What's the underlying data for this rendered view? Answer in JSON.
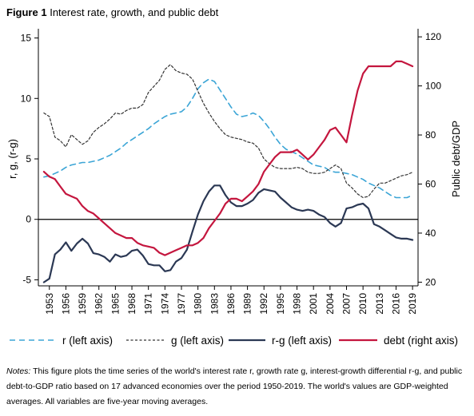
{
  "figure": {
    "label": "Figure 1",
    "title": "Interest rate, growth, and public debt"
  },
  "notes": {
    "label": "Notes:",
    "text": "This figure plots the time series of the world's interest rate r, growth rate g, interest-growth differential r-g, and public debt-to-GDP ratio based on 17 advanced economies over the period 1950-2019. The world's values are GDP-weighted averages. All variables are five-year moving averages."
  },
  "chart_data": {
    "type": "line",
    "ylabel_left": "r, g, (r-g)",
    "ylabel_right": "Public debt/GDP",
    "ylim_left": [
      -5.5,
      15.5
    ],
    "ylim_right": [
      18.5,
      122
    ],
    "yticks_left": [
      -5,
      0,
      5,
      10,
      15
    ],
    "yticks_right": [
      20,
      40,
      60,
      80,
      100,
      120
    ],
    "xlim": [
      1951,
      2020
    ],
    "xticks": [
      1953,
      1956,
      1959,
      1962,
      1965,
      1968,
      1971,
      1974,
      1977,
      1980,
      1983,
      1986,
      1989,
      1992,
      1995,
      1998,
      2001,
      2004,
      2007,
      2010,
      2013,
      2016,
      2019
    ],
    "zero_line": true,
    "grid": false,
    "legend_position": "bottom",
    "colors": {
      "r": "#3BA5D6",
      "g": "#333333",
      "rg": "#2B3854",
      "debt": "#C4163E"
    },
    "series": [
      {
        "key": "r",
        "name": "r (left axis)",
        "axis": "left",
        "style": "dashed",
        "x": [
          1952,
          1953,
          1954,
          1955,
          1956,
          1957,
          1958,
          1959,
          1960,
          1961,
          1962,
          1963,
          1964,
          1965,
          1966,
          1967,
          1968,
          1969,
          1970,
          1971,
          1972,
          1973,
          1974,
          1975,
          1976,
          1977,
          1978,
          1979,
          1980,
          1981,
          1982,
          1983,
          1984,
          1985,
          1986,
          1987,
          1988,
          1989,
          1990,
          1991,
          1992,
          1993,
          1994,
          1995,
          1996,
          1997,
          1998,
          1999,
          2000,
          2001,
          2002,
          2003,
          2004,
          2005,
          2006,
          2007,
          2008,
          2009,
          2010,
          2011,
          2012,
          2013,
          2014,
          2015,
          2016,
          2017,
          2018,
          2019
        ],
        "y": [
          3.5,
          3.6,
          3.8,
          4.0,
          4.3,
          4.5,
          4.6,
          4.7,
          4.7,
          4.8,
          4.9,
          5.1,
          5.3,
          5.6,
          5.9,
          6.3,
          6.6,
          6.9,
          7.2,
          7.5,
          7.9,
          8.2,
          8.5,
          8.7,
          8.8,
          8.9,
          9.3,
          10.0,
          10.8,
          11.3,
          11.6,
          11.4,
          10.7,
          10.0,
          9.3,
          8.7,
          8.5,
          8.6,
          8.8,
          8.6,
          8.1,
          7.5,
          6.8,
          6.2,
          5.8,
          5.6,
          5.4,
          5.1,
          4.8,
          4.5,
          4.4,
          4.3,
          4.0,
          3.9,
          3.9,
          3.8,
          3.7,
          3.5,
          3.3,
          3.0,
          2.8,
          2.6,
          2.3,
          2.0,
          1.8,
          1.8,
          1.8,
          2.0
        ]
      },
      {
        "key": "g",
        "name": "g (left axis)",
        "axis": "left",
        "style": "dotted",
        "x": [
          1952,
          1953,
          1954,
          1955,
          1956,
          1957,
          1958,
          1959,
          1960,
          1961,
          1962,
          1963,
          1964,
          1965,
          1966,
          1967,
          1968,
          1969,
          1970,
          1971,
          1972,
          1973,
          1974,
          1975,
          1976,
          1977,
          1978,
          1979,
          1980,
          1981,
          1982,
          1983,
          1984,
          1985,
          1986,
          1987,
          1988,
          1989,
          1990,
          1991,
          1992,
          1993,
          1994,
          1995,
          1996,
          1997,
          1998,
          1999,
          2000,
          2001,
          2002,
          2003,
          2004,
          2005,
          2006,
          2007,
          2008,
          2009,
          2010,
          2011,
          2012,
          2013,
          2014,
          2015,
          2016,
          2017,
          2018,
          2019
        ],
        "y": [
          8.8,
          8.5,
          6.8,
          6.5,
          6.0,
          7.0,
          6.6,
          6.2,
          6.5,
          7.2,
          7.6,
          7.9,
          8.3,
          8.8,
          8.7,
          9.0,
          9.2,
          9.2,
          9.5,
          10.5,
          11.0,
          11.5,
          12.4,
          12.8,
          12.3,
          12.1,
          12.0,
          11.6,
          10.6,
          9.6,
          8.8,
          8.1,
          7.5,
          7.0,
          6.8,
          6.7,
          6.6,
          6.4,
          6.3,
          5.9,
          5.0,
          4.6,
          4.3,
          4.2,
          4.2,
          4.2,
          4.3,
          4.2,
          3.9,
          3.8,
          3.8,
          3.9,
          4.2,
          4.5,
          4.2,
          3.0,
          2.6,
          2.1,
          1.8,
          1.9,
          2.5,
          3.0,
          3.0,
          3.2,
          3.4,
          3.6,
          3.7,
          3.9
        ]
      },
      {
        "key": "rg",
        "name": "r-g (left axis)",
        "axis": "left",
        "style": "solid",
        "x": [
          1952,
          1953,
          1954,
          1955,
          1956,
          1957,
          1958,
          1959,
          1960,
          1961,
          1962,
          1963,
          1964,
          1965,
          1966,
          1967,
          1968,
          1969,
          1970,
          1971,
          1972,
          1973,
          1974,
          1975,
          1976,
          1977,
          1978,
          1979,
          1980,
          1981,
          1982,
          1983,
          1984,
          1985,
          1986,
          1987,
          1988,
          1989,
          1990,
          1991,
          1992,
          1993,
          1994,
          1995,
          1996,
          1997,
          1998,
          1999,
          2000,
          2001,
          2002,
          2003,
          2004,
          2005,
          2006,
          2007,
          2008,
          2009,
          2010,
          2011,
          2012,
          2013,
          2014,
          2015,
          2016,
          2017,
          2018,
          2019
        ],
        "y": [
          -5.2,
          -4.9,
          -2.9,
          -2.5,
          -1.9,
          -2.6,
          -2.0,
          -1.6,
          -2.0,
          -2.8,
          -2.9,
          -3.1,
          -3.5,
          -2.9,
          -3.1,
          -3.0,
          -2.6,
          -2.5,
          -3.0,
          -3.7,
          -3.8,
          -3.8,
          -4.3,
          -4.2,
          -3.5,
          -3.2,
          -2.5,
          -1.0,
          0.4,
          1.5,
          2.3,
          2.8,
          2.8,
          2.0,
          1.4,
          1.1,
          1.1,
          1.3,
          1.6,
          2.2,
          2.5,
          2.4,
          2.3,
          1.8,
          1.4,
          1.0,
          0.8,
          0.7,
          0.8,
          0.7,
          0.4,
          0.2,
          -0.3,
          -0.6,
          -0.3,
          0.9,
          1.0,
          1.2,
          1.3,
          0.9,
          -0.4,
          -0.6,
          -0.9,
          -1.2,
          -1.5,
          -1.6,
          -1.6,
          -1.7
        ]
      },
      {
        "key": "debt",
        "name": "debt (right axis)",
        "axis": "right",
        "style": "solid",
        "x": [
          1952,
          1953,
          1954,
          1955,
          1956,
          1957,
          1958,
          1959,
          1960,
          1961,
          1962,
          1963,
          1964,
          1965,
          1966,
          1967,
          1968,
          1969,
          1970,
          1971,
          1972,
          1973,
          1974,
          1975,
          1976,
          1977,
          1978,
          1979,
          1980,
          1981,
          1982,
          1983,
          1984,
          1985,
          1986,
          1987,
          1988,
          1989,
          1990,
          1991,
          1992,
          1993,
          1994,
          1995,
          1996,
          1997,
          1998,
          1999,
          2000,
          2001,
          2002,
          2003,
          2004,
          2005,
          2006,
          2007,
          2008,
          2009,
          2010,
          2011,
          2012,
          2013,
          2014,
          2015,
          2016,
          2017,
          2018,
          2019
        ],
        "y": [
          65,
          63,
          62,
          59,
          56,
          55,
          54,
          51,
          49,
          48,
          46,
          44,
          42,
          40,
          39,
          38,
          38,
          36,
          35,
          34.5,
          34,
          32,
          31,
          32,
          33,
          34,
          35,
          35,
          36,
          38,
          42,
          45,
          48,
          52,
          54,
          54,
          53,
          55,
          57,
          60,
          65,
          68,
          71,
          73,
          73,
          73,
          74,
          72,
          70,
          72,
          75,
          78,
          82,
          83,
          80,
          77,
          88,
          98,
          105,
          108,
          108,
          108,
          108,
          108,
          110,
          110,
          109,
          108
        ]
      }
    ]
  }
}
